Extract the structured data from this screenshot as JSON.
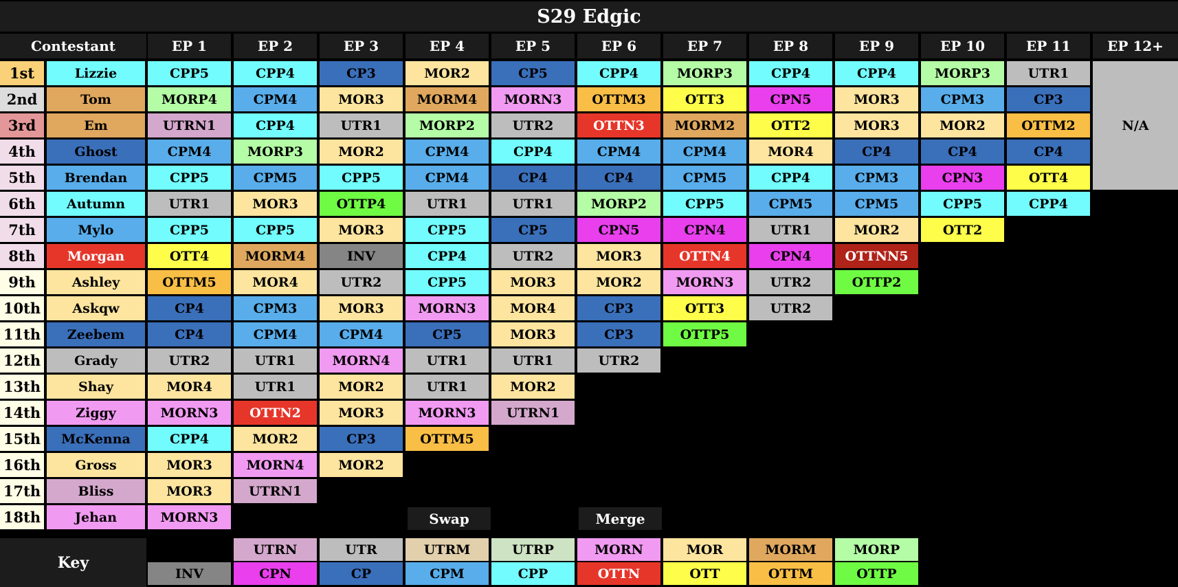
{
  "title": "S29 Edgic",
  "headers": [
    "Contestant",
    "EP 1",
    "EP 2",
    "EP 3",
    "EP 4",
    "EP 5",
    "EP 6",
    "EP 7",
    "EP 8",
    "EP 9",
    "EP 10",
    "EP 11",
    "EP 12+"
  ],
  "na_label": "N/A",
  "swap_label": "Swap",
  "merge_label": "Merge",
  "key_label": "Key",
  "colors": {
    "UTRN": "#d4a8cc",
    "UTR": "#bdbdbd",
    "UTRM": "#e2cfac",
    "UTRP": "#cde3c3",
    "MORN": "#f19af1",
    "MOR": "#fde49f",
    "MORM": "#dfa85e",
    "MORP": "#b4fca6",
    "INV": "#858585",
    "CPN": "#e93fed",
    "CP": "#3a6fba",
    "CPM": "#58adea",
    "CPP": "#72fcfd",
    "OTTN": "#e6362a",
    "OTT": "#fdfd4a",
    "OTTM": "#f8be45",
    "OTTP": "#6ffb43",
    "OTTNN": "#b02318",
    "rank_top3": [
      "#fad178",
      "#dcdcdc",
      "#e49799"
    ],
    "rank_other": "#f1dde9",
    "rank_low": "#fefde6",
    "na": "#bdbdbd"
  },
  "contestants": [
    {
      "rank": "1st",
      "name": "Lizzie",
      "name_cat": "CPP",
      "eps": [
        "CPP5",
        "CPP4",
        "CP3",
        "MOR2",
        "CP5",
        "CPP4",
        "MORP3",
        "CPP4",
        "CPP4",
        "MORP3",
        "UTR1"
      ]
    },
    {
      "rank": "2nd",
      "name": "Tom",
      "name_cat": "MORM",
      "eps": [
        "MORP4",
        "CPM4",
        "MOR3",
        "MORM4",
        "MORN3",
        "OTTM3",
        "OTT3",
        "CPN5",
        "MOR3",
        "CPM3",
        "CP3"
      ]
    },
    {
      "rank": "3rd",
      "name": "Em",
      "name_cat": "MORM",
      "eps": [
        "UTRN1",
        "CPP4",
        "UTR1",
        "MORP2",
        "UTR2",
        "OTTN3",
        "MORM2",
        "OTT2",
        "MOR3",
        "MOR2",
        "OTTM2"
      ]
    },
    {
      "rank": "4th",
      "name": "Ghost",
      "name_cat": "CP",
      "eps": [
        "CPM4",
        "MORP3",
        "MOR2",
        "CPM4",
        "CPP4",
        "CPM4",
        "CPM4",
        "MOR4",
        "CP4",
        "CP4",
        "CP4"
      ]
    },
    {
      "rank": "5th",
      "name": "Brendan",
      "name_cat": "CPM",
      "eps": [
        "CPP5",
        "CPM5",
        "CPP5",
        "CPM4",
        "CP4",
        "CP4",
        "CPM5",
        "CPP4",
        "CPM3",
        "CPN3",
        "OTT4"
      ]
    },
    {
      "rank": "6th",
      "name": "Autumn",
      "name_cat": "CPP",
      "eps": [
        "UTR1",
        "MOR3",
        "OTTP4",
        "UTR1",
        "UTR1",
        "MORP2",
        "CPP5",
        "CPM5",
        "CPM5",
        "CPP5",
        "CPP4"
      ]
    },
    {
      "rank": "7th",
      "name": "Mylo",
      "name_cat": "CPM",
      "eps": [
        "CPP5",
        "CPP5",
        "MOR3",
        "CPP5",
        "CP5",
        "CPN5",
        "CPN4",
        "UTR1",
        "MOR2",
        "OTT2"
      ]
    },
    {
      "rank": "8th",
      "name": "Morgan",
      "name_cat": "OTTN",
      "eps": [
        "OTT4",
        "MORM4",
        "INV",
        "CPP4",
        "UTR2",
        "MOR3",
        "OTTN4",
        "CPN4",
        "OTTNN5"
      ]
    },
    {
      "rank": "9th",
      "name": "Ashley",
      "name_cat": "MOR",
      "eps": [
        "OTTM5",
        "MOR4",
        "UTR2",
        "CPP5",
        "MOR3",
        "MOR2",
        "MORN3",
        "UTR2",
        "OTTP2"
      ]
    },
    {
      "rank": "10th",
      "name": "Askqw",
      "name_cat": "MOR",
      "eps": [
        "CP4",
        "CPM3",
        "MOR3",
        "MORN3",
        "MOR4",
        "CP3",
        "OTT3",
        "UTR2"
      ]
    },
    {
      "rank": "11th",
      "name": "Zeebem",
      "name_cat": "CP",
      "eps": [
        "CP4",
        "CPM4",
        "CPM4",
        "CP5",
        "MOR3",
        "CP3",
        "OTTP5"
      ]
    },
    {
      "rank": "12th",
      "name": "Grady",
      "name_cat": "UTR",
      "eps": [
        "UTR2",
        "UTR1",
        "MORN4",
        "UTR1",
        "UTR1",
        "UTR2"
      ]
    },
    {
      "rank": "13th",
      "name": "Shay",
      "name_cat": "MOR",
      "eps": [
        "MOR4",
        "UTR1",
        "MOR2",
        "UTR1",
        "MOR2"
      ]
    },
    {
      "rank": "14th",
      "name": "Ziggy",
      "name_cat": "MORN",
      "eps": [
        "MORN3",
        "OTTN2",
        "MOR3",
        "MORN3",
        "UTRN1"
      ]
    },
    {
      "rank": "15th",
      "name": "McKenna",
      "name_cat": "CP",
      "eps": [
        "CPP4",
        "MOR2",
        "CP3",
        "OTTM5"
      ]
    },
    {
      "rank": "16th",
      "name": "Gross",
      "name_cat": "MOR",
      "eps": [
        "MOR3",
        "MORN4",
        "MOR2"
      ]
    },
    {
      "rank": "17th",
      "name": "Bliss",
      "name_cat": "UTRN",
      "eps": [
        "MOR3",
        "UTRN1"
      ]
    },
    {
      "rank": "18th",
      "name": "Jehan",
      "name_cat": "MORN",
      "eps": [
        "MORN3"
      ]
    }
  ],
  "key_row1": [
    "UTRN",
    "UTR",
    "UTRM",
    "UTRP",
    "MORN",
    "MOR",
    "MORM",
    "MORP"
  ],
  "key_row2": [
    "INV",
    "CPN",
    "CP",
    "CPM",
    "CPP",
    "OTTN",
    "OTT",
    "OTTM",
    "OTTP"
  ]
}
